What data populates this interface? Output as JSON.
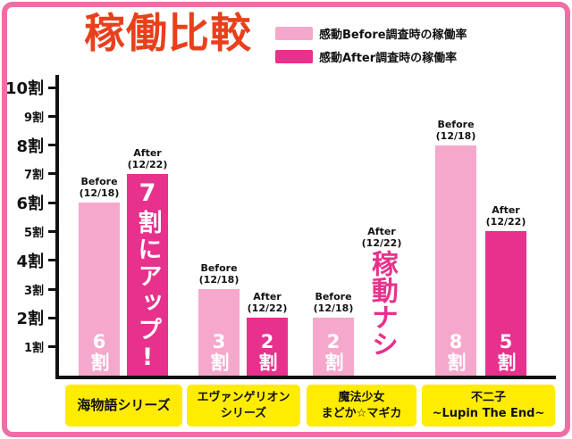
{
  "header": {
    "title": "稼働比較",
    "legend": [
      {
        "label": "感動Before調査時の稼働率",
        "color": "#f5a8cb"
      },
      {
        "label": "感動After調査時の稼働率",
        "color": "#e7318c"
      }
    ]
  },
  "chart_data": {
    "type": "bar",
    "title": "稼働比較",
    "unit": "割",
    "ylim": [
      0,
      10
    ],
    "yticks": [
      "10割",
      "9割",
      "8割",
      "7割",
      "6割",
      "5割",
      "4割",
      "3割",
      "2割",
      "1割"
    ],
    "categories": [
      "海物語シリーズ",
      "エヴァンゲリオンシリーズ",
      "魔法少女まどか☆マギカ",
      "不二子~Lupin The End~"
    ],
    "category_lines": [
      [
        "海物語シリーズ"
      ],
      [
        "エヴァンゲリオン",
        "シリーズ"
      ],
      [
        "魔法少女",
        "まどか☆マギカ"
      ],
      [
        "不二子",
        "~Lupin The End~"
      ]
    ],
    "series": [
      {
        "name": "感動Before調査時の稼働率",
        "tag": "Before",
        "date": "(12/18)",
        "color": "#f5a8cb",
        "values": [
          6,
          3,
          2,
          8
        ]
      },
      {
        "name": "感動After調査時の稼働率",
        "tag": "After",
        "date": "(12/22)",
        "color": "#e7318c",
        "values": [
          7,
          2,
          null,
          5
        ]
      }
    ],
    "bar_labels": {
      "before": [
        "6割",
        "3割",
        "2割",
        "8割"
      ],
      "after": [
        "7割にアップ!",
        "2割",
        "稼動ナシ",
        "5割"
      ]
    },
    "annotations": [
      {
        "text": "7割にアップ!",
        "target": "海物語シリーズ After bar"
      },
      {
        "text": "稼動ナシ",
        "target": "魔法少女まどか☆マギカ After"
      }
    ],
    "legend_position": "top-right",
    "grid": false
  },
  "colors": {
    "frame": "#ee6fa5",
    "title": "#e8401c",
    "before_bar": "#f5a8cb",
    "after_bar": "#e7318c",
    "category_bg": "#ffec00",
    "axis": "#111111"
  }
}
